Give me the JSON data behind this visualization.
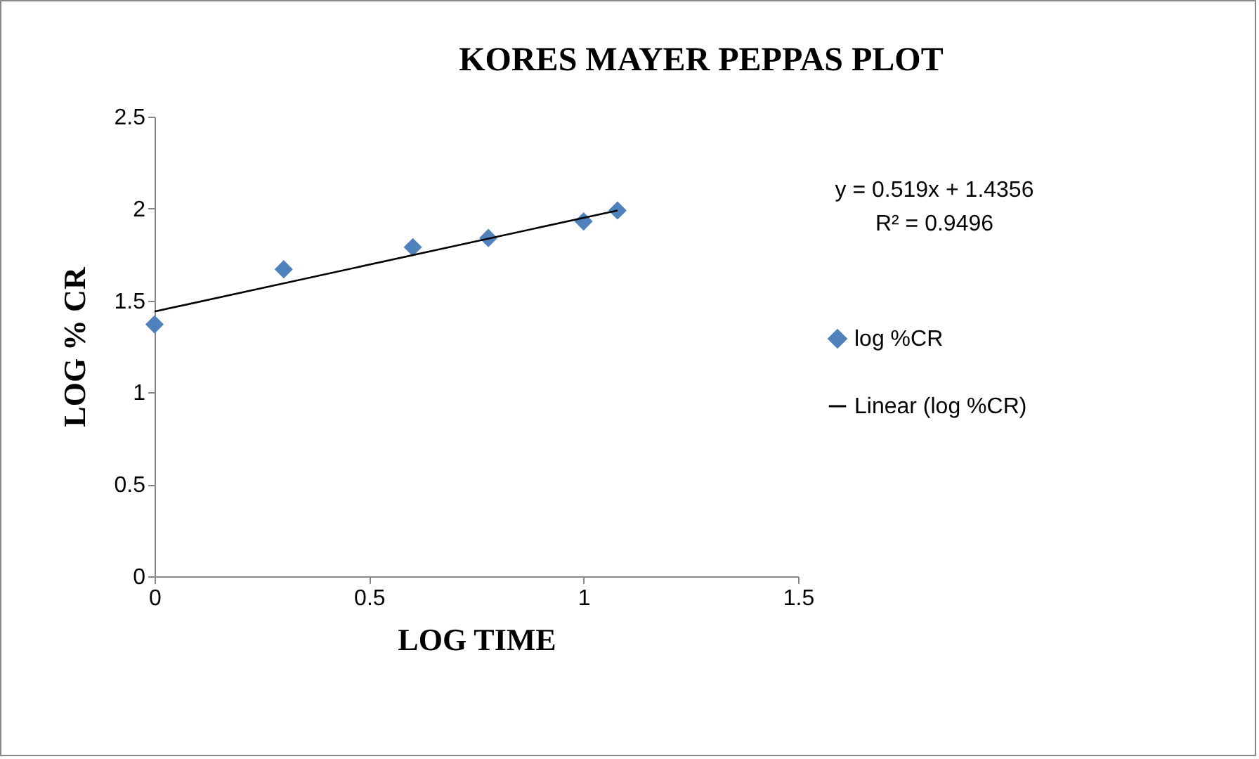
{
  "chart_data": {
    "type": "scatter",
    "title": "KORES MAYER PEPPAS PLOT",
    "xlabel": "LOG TIME",
    "ylabel": "LOG % CR",
    "xlim": [
      0,
      1.5
    ],
    "xticks": [
      0,
      0.5,
      1,
      1.5
    ],
    "ylim": [
      0,
      2.5
    ],
    "yticks": [
      0,
      0.5,
      1,
      1.5,
      2,
      2.5
    ],
    "grid": false,
    "legend": "right",
    "annotations": [
      "y = 0.519x + 1.4356",
      "R² = 0.9496"
    ],
    "series": [
      {
        "name": "log %CR",
        "marker": "diamond",
        "color": "#4f81bd",
        "x": [
          0,
          0.301,
          0.602,
          0.778,
          1,
          1.079
        ],
        "values": [
          1.37,
          1.67,
          1.79,
          1.84,
          1.93,
          1.99
        ]
      },
      {
        "name": "Linear (log %CR)",
        "type": "line",
        "line_style": "solid",
        "color": "#000000",
        "x": [
          0,
          1.079
        ],
        "values": [
          1.44,
          1.99
        ]
      }
    ]
  }
}
